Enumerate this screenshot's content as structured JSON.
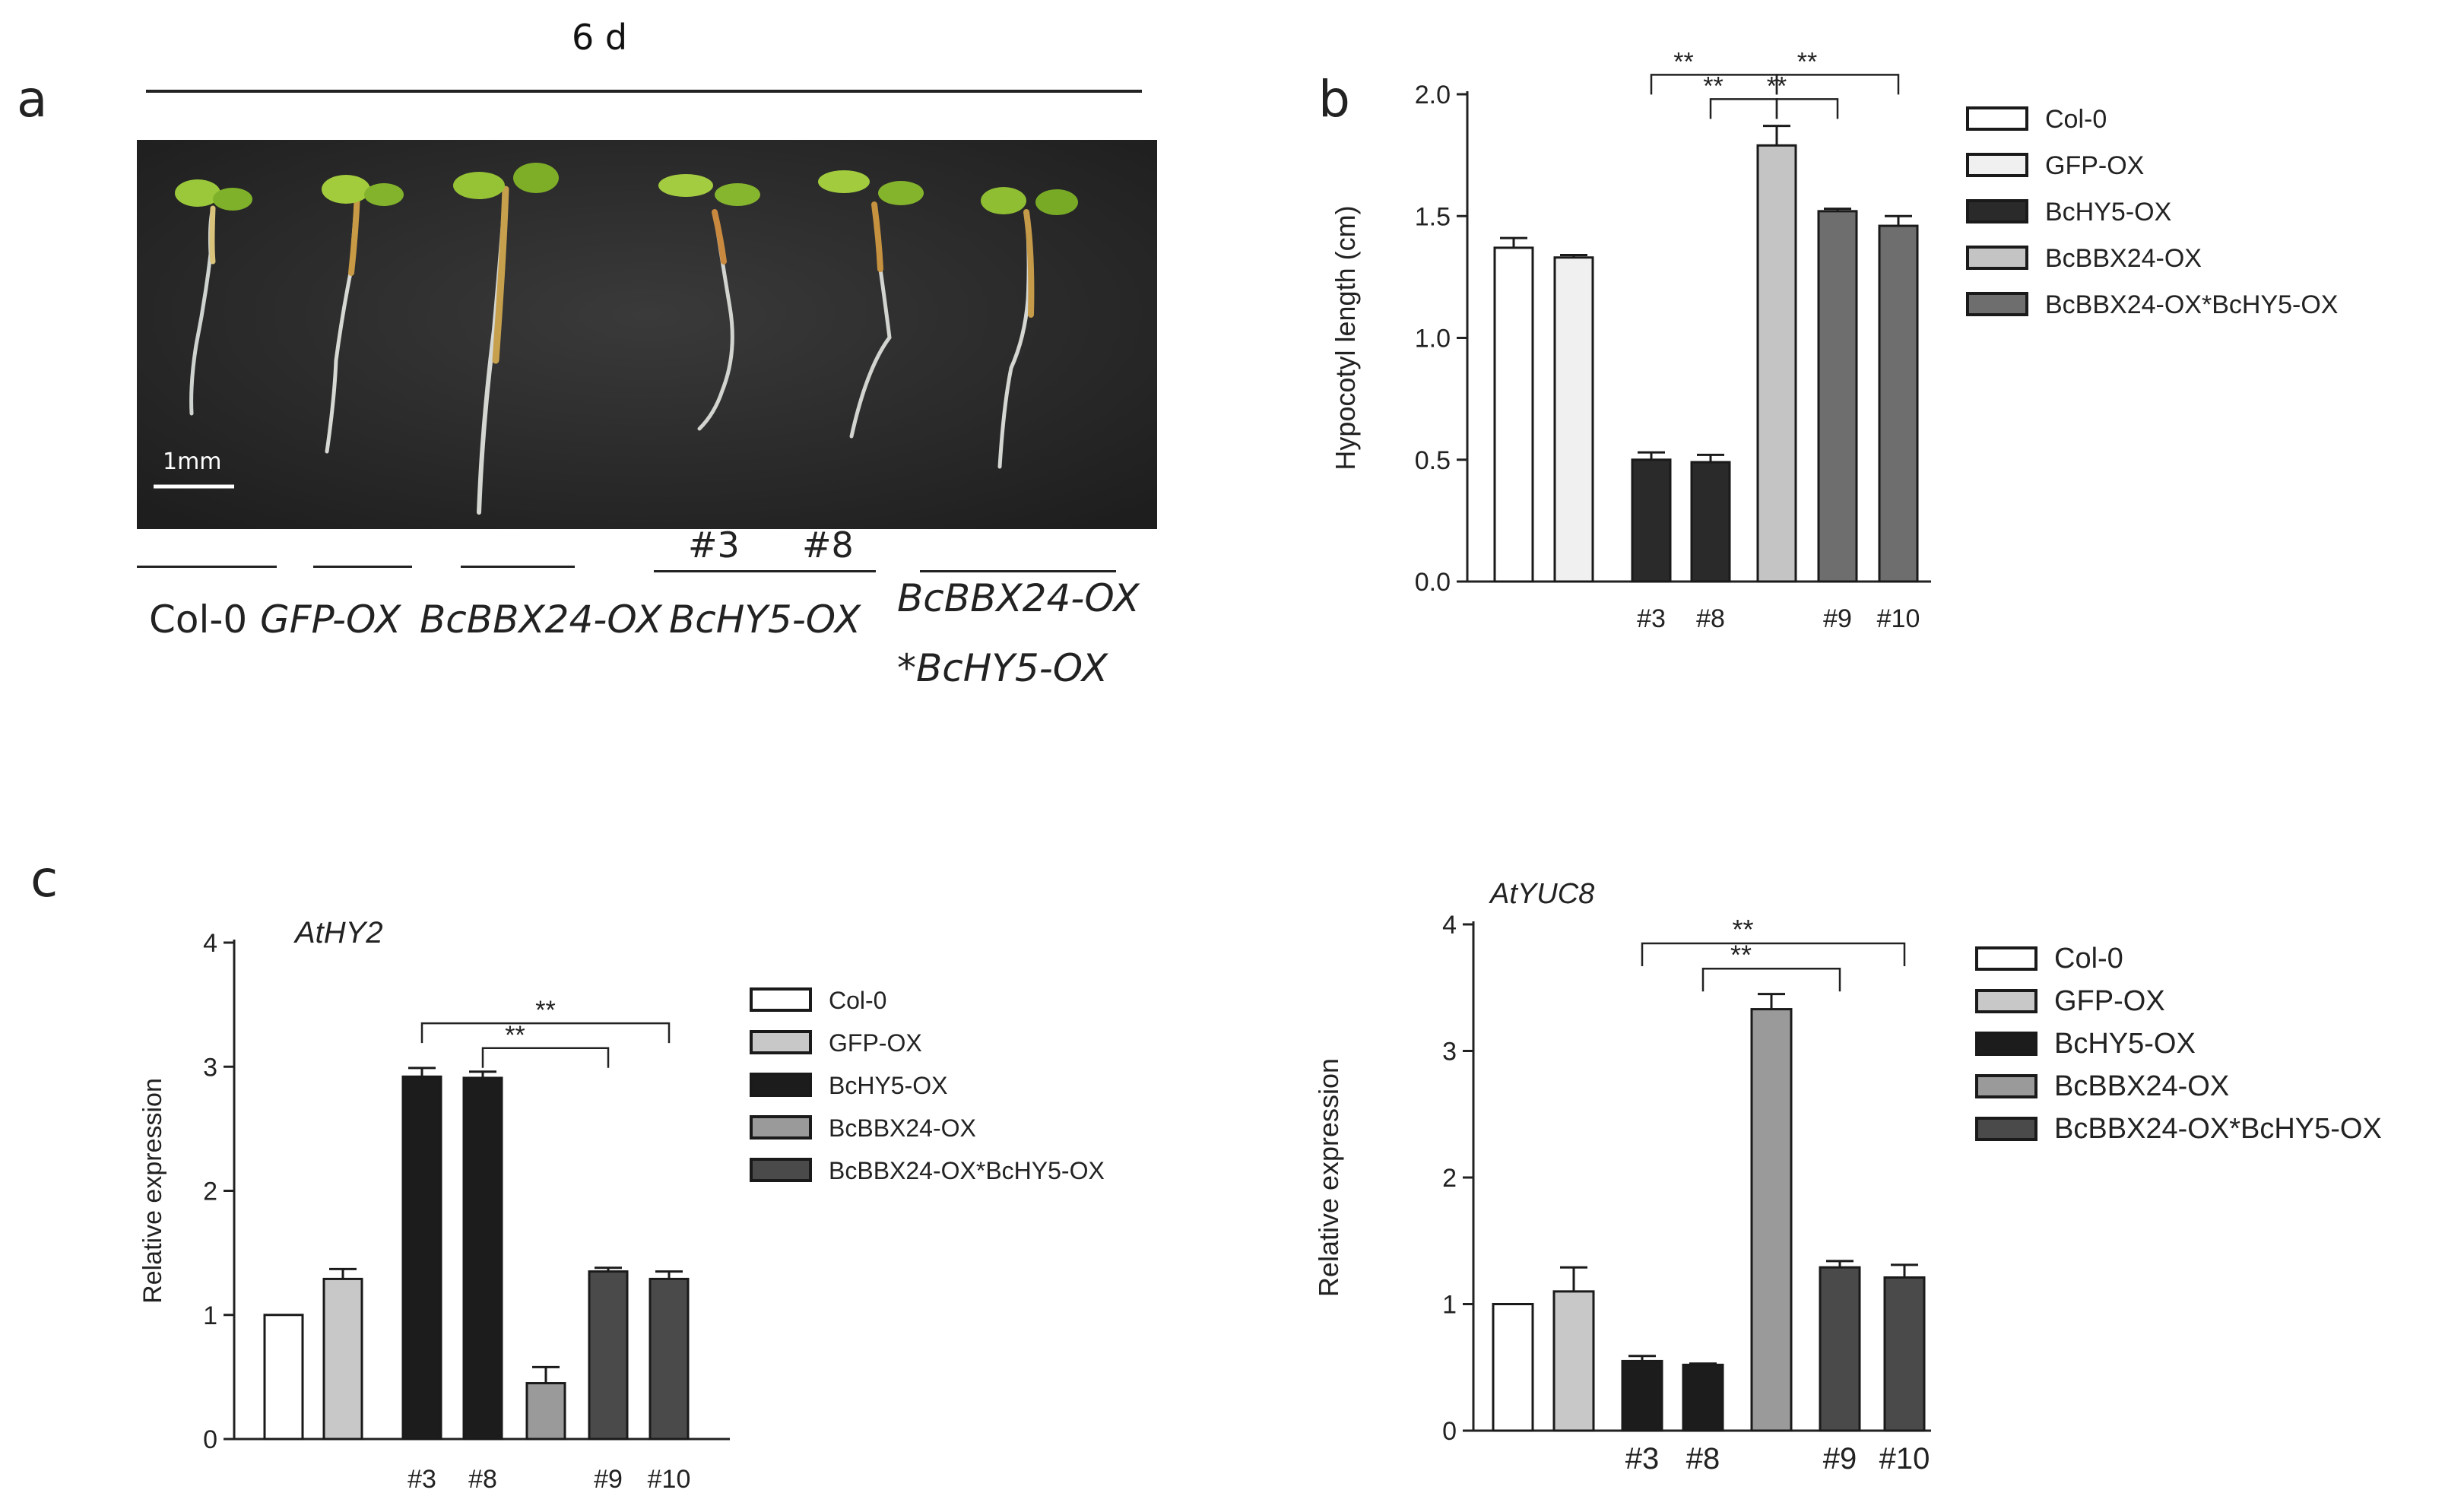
{
  "panel_a": {
    "letter": "a",
    "time_label": "6 d",
    "scale_bar": "1mm",
    "genotype_labels": [
      "Col-0",
      "GFP-OX",
      "BcBBX24-OX",
      "BcHY5-OX",
      "BcBBX24-OX",
      "*BcHY5-OX"
    ],
    "line_labels": [
      "#3",
      "#8"
    ]
  },
  "panel_b": {
    "letter": "b"
  },
  "panel_c": {
    "letter": "c"
  },
  "chart_data": [
    {
      "type": "bar",
      "ylabel": "Hypocotyl length (cm)",
      "ylim": [
        0,
        2.0
      ],
      "yticks": [
        "0.0",
        "0.5",
        "1.0",
        "1.5",
        "2.0"
      ],
      "categories": [
        "",
        "",
        "#3",
        "#8",
        "",
        "#9",
        "#10"
      ],
      "values": [
        1.37,
        1.33,
        0.5,
        0.49,
        1.79,
        1.52,
        1.46
      ],
      "errors": [
        0.04,
        0.01,
        0.03,
        0.03,
        0.08,
        0.01,
        0.04
      ],
      "series_index": [
        0,
        1,
        2,
        2,
        3,
        4,
        4
      ],
      "legend": [
        "Col-0",
        "GFP-OX",
        "BcHY5-OX",
        "BcBBX24-OX",
        "BcBBX24-OX*BcHY5-OX"
      ],
      "legend_position": "right",
      "colors": [
        "#ffffff",
        "#f0f0f0",
        "#2a2a2a",
        "#c4c4c4",
        "#6e6e6e"
      ],
      "significance": "**"
    },
    {
      "type": "bar",
      "title": "AtHY2",
      "ylabel": "Relative expression",
      "ylim": [
        0,
        4
      ],
      "yticks": [
        "0",
        "1",
        "2",
        "3",
        "4"
      ],
      "categories": [
        "",
        "",
        "#3",
        "#8",
        "",
        "#9",
        "#10"
      ],
      "values": [
        1.0,
        1.29,
        2.92,
        2.91,
        0.45,
        1.35,
        1.29
      ],
      "errors": [
        0.0,
        0.08,
        0.07,
        0.05,
        0.13,
        0.03,
        0.06
      ],
      "series_index": [
        0,
        1,
        2,
        2,
        3,
        4,
        4
      ],
      "legend": [
        "Col-0",
        "GFP-OX",
        "BcHY5-OX",
        "BcBBX24-OX",
        "BcBBX24-OX*BcHY5-OX"
      ],
      "legend_position": "right",
      "colors": [
        "#ffffff",
        "#c8c8c8",
        "#1c1c1c",
        "#9a9a9a",
        "#4a4a4a"
      ],
      "significance": "**"
    },
    {
      "type": "bar",
      "title": "AtYUC8",
      "ylabel": "Relative expression",
      "ylim": [
        0,
        4
      ],
      "yticks": [
        "0",
        "1",
        "2",
        "3",
        "4"
      ],
      "categories": [
        "",
        "",
        "#3",
        "#8",
        "",
        "#9",
        "#10"
      ],
      "values": [
        1.0,
        1.1,
        0.55,
        0.52,
        3.33,
        1.29,
        1.21
      ],
      "errors": [
        0.0,
        0.19,
        0.04,
        0.01,
        0.12,
        0.05,
        0.1
      ],
      "series_index": [
        0,
        1,
        2,
        2,
        3,
        4,
        4
      ],
      "legend": [
        "Col-0",
        "GFP-OX",
        "BcHY5-OX",
        "BcBBX24-OX",
        "BcBBX24-OX*BcHY5-OX"
      ],
      "legend_position": "right",
      "colors": [
        "#ffffff",
        "#c8c8c8",
        "#1c1c1c",
        "#9a9a9a",
        "#4a4a4a"
      ],
      "significance": "**"
    }
  ]
}
